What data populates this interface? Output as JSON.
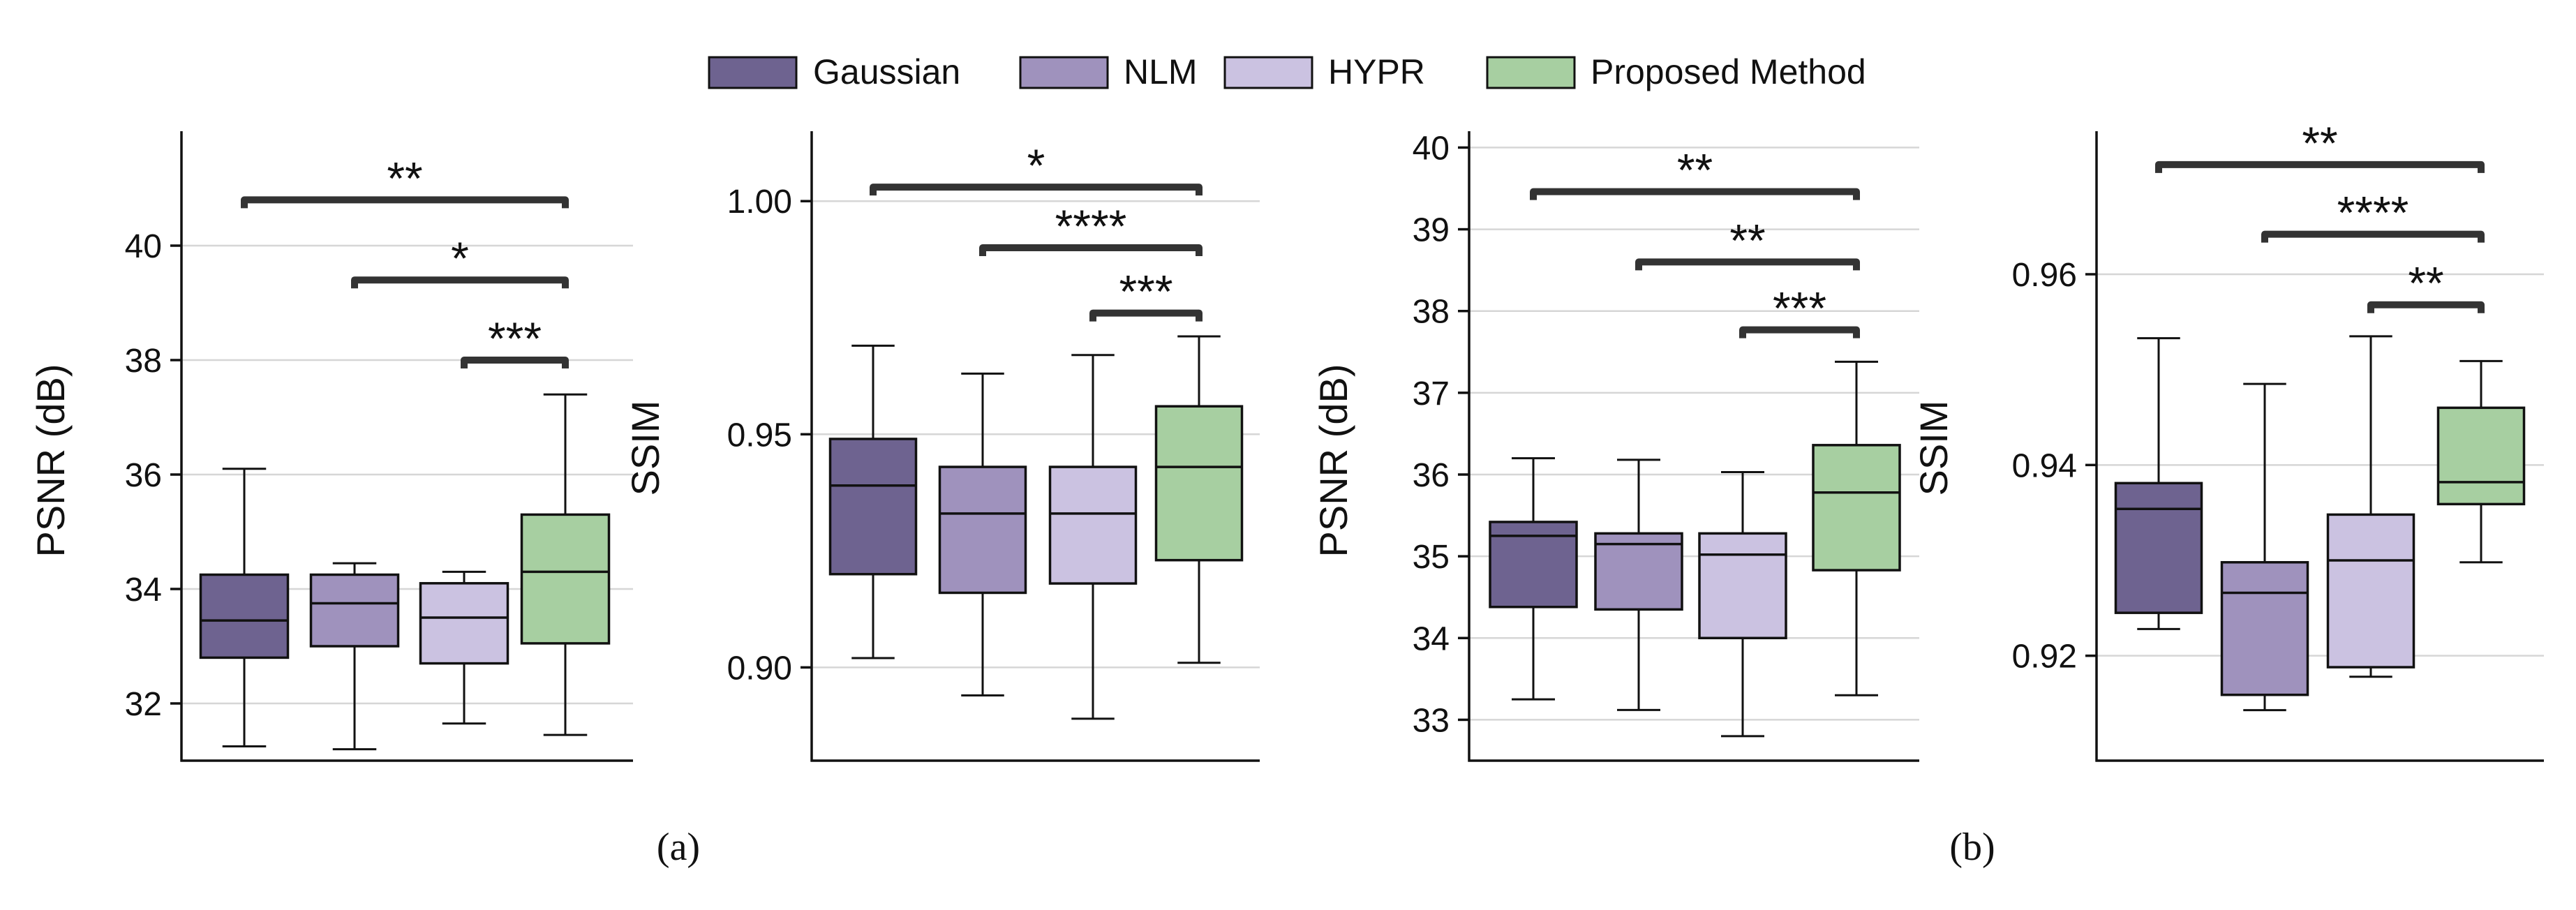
{
  "colors": {
    "Gaussian": "#6e6390",
    "NLM": "#9f92bd",
    "HYPR": "#cbc2e1",
    "Proposed Method": "#a7cfa1",
    "axis": "#111111",
    "grid": "#d6d6d6",
    "bracket": "#333333"
  },
  "legend": [
    "Gaussian",
    "NLM",
    "HYPR",
    "Proposed Method"
  ],
  "captions": [
    "(a)",
    "(b)"
  ],
  "chart_data": [
    {
      "type": "box",
      "group": "(a)",
      "ylabel": "PSNR (dB)",
      "ylim": [
        31.0,
        42.0
      ],
      "yticks": [
        32,
        34,
        36,
        38,
        40
      ],
      "tick_labels": [
        "32",
        "34",
        "36",
        "38",
        "40"
      ],
      "grid": true,
      "series": [
        {
          "name": "Gaussian",
          "whislo": 31.25,
          "q1": 32.8,
          "med": 33.45,
          "q3": 34.25,
          "whishi": 36.1
        },
        {
          "name": "NLM",
          "whislo": 31.2,
          "q1": 33.0,
          "med": 33.75,
          "q3": 34.25,
          "whishi": 34.45
        },
        {
          "name": "HYPR",
          "whislo": 31.65,
          "q1": 32.7,
          "med": 33.5,
          "q3": 34.1,
          "whishi": 34.3
        },
        {
          "name": "Proposed Method",
          "whislo": 31.45,
          "q1": 33.05,
          "med": 34.3,
          "q3": 35.3,
          "whishi": 37.4
        }
      ],
      "significance": [
        {
          "from": "Gaussian",
          "to": "Proposed Method",
          "label": "**",
          "y": 40.8
        },
        {
          "from": "NLM",
          "to": "Proposed Method",
          "label": "*",
          "y": 39.4
        },
        {
          "from": "HYPR",
          "to": "Proposed Method",
          "label": "***",
          "y": 38.0
        }
      ]
    },
    {
      "type": "box",
      "group": "(a)",
      "ylabel": "SSIM",
      "ylim": [
        0.88,
        1.015
      ],
      "yticks": [
        0.9,
        0.95,
        1.0
      ],
      "tick_labels": [
        "0.90",
        "0.95",
        "1.00"
      ],
      "grid": true,
      "series": [
        {
          "name": "Gaussian",
          "whislo": 0.902,
          "q1": 0.92,
          "med": 0.939,
          "q3": 0.949,
          "whishi": 0.969
        },
        {
          "name": "NLM",
          "whislo": 0.894,
          "q1": 0.916,
          "med": 0.933,
          "q3": 0.943,
          "whishi": 0.963
        },
        {
          "name": "HYPR",
          "whislo": 0.889,
          "q1": 0.918,
          "med": 0.933,
          "q3": 0.943,
          "whishi": 0.967
        },
        {
          "name": "Proposed Method",
          "whislo": 0.901,
          "q1": 0.923,
          "med": 0.943,
          "q3": 0.956,
          "whishi": 0.971
        }
      ],
      "significance": [
        {
          "from": "Gaussian",
          "to": "Proposed Method",
          "label": "*",
          "y": 1.003
        },
        {
          "from": "NLM",
          "to": "Proposed Method",
          "label": "****",
          "y": 0.99
        },
        {
          "from": "HYPR",
          "to": "Proposed Method",
          "label": "***",
          "y": 0.976
        }
      ]
    },
    {
      "type": "box",
      "group": "(b)",
      "ylabel": "PSNR (dB)",
      "ylim": [
        32.5,
        40.2
      ],
      "yticks": [
        33,
        34,
        35,
        36,
        37,
        38,
        39,
        40
      ],
      "tick_labels": [
        "33",
        "34",
        "35",
        "36",
        "37",
        "38",
        "39",
        "40"
      ],
      "grid": true,
      "series": [
        {
          "name": "Gaussian",
          "whislo": 33.25,
          "q1": 34.38,
          "med": 35.25,
          "q3": 35.42,
          "whishi": 36.2
        },
        {
          "name": "NLM",
          "whislo": 33.12,
          "q1": 34.35,
          "med": 35.15,
          "q3": 35.28,
          "whishi": 36.18
        },
        {
          "name": "HYPR",
          "whislo": 32.8,
          "q1": 34.0,
          "med": 35.02,
          "q3": 35.28,
          "whishi": 36.03
        },
        {
          "name": "Proposed Method",
          "whislo": 33.3,
          "q1": 34.83,
          "med": 35.78,
          "q3": 36.36,
          "whishi": 37.38
        }
      ],
      "significance": [
        {
          "from": "Gaussian",
          "to": "Proposed Method",
          "label": "**",
          "y": 39.46
        },
        {
          "from": "NLM",
          "to": "Proposed Method",
          "label": "**",
          "y": 38.6
        },
        {
          "from": "HYPR",
          "to": "Proposed Method",
          "label": "***",
          "y": 37.77
        }
      ]
    },
    {
      "type": "box",
      "group": "(b)",
      "ylabel": "SSIM",
      "ylim": [
        0.909,
        0.975
      ],
      "yticks": [
        0.92,
        0.94,
        0.96
      ],
      "tick_labels": [
        "0.92",
        "0.94",
        "0.96"
      ],
      "grid": true,
      "series": [
        {
          "name": "Gaussian",
          "whislo": 0.9228,
          "q1": 0.9245,
          "med": 0.9354,
          "q3": 0.9381,
          "whishi": 0.9533
        },
        {
          "name": "NLM",
          "whislo": 0.9143,
          "q1": 0.9159,
          "med": 0.9266,
          "q3": 0.9298,
          "whishi": 0.9485
        },
        {
          "name": "HYPR",
          "whislo": 0.9178,
          "q1": 0.9188,
          "med": 0.93,
          "q3": 0.9348,
          "whishi": 0.9535
        },
        {
          "name": "Proposed Method",
          "whislo": 0.9298,
          "q1": 0.9359,
          "med": 0.9382,
          "q3": 0.946,
          "whishi": 0.9509
        }
      ],
      "significance": [
        {
          "from": "Gaussian",
          "to": "Proposed Method",
          "label": "**",
          "y": 0.9715
        },
        {
          "from": "NLM",
          "to": "Proposed Method",
          "label": "****",
          "y": 0.9642
        },
        {
          "from": "HYPR",
          "to": "Proposed Method",
          "label": "**",
          "y": 0.9568
        }
      ]
    }
  ]
}
